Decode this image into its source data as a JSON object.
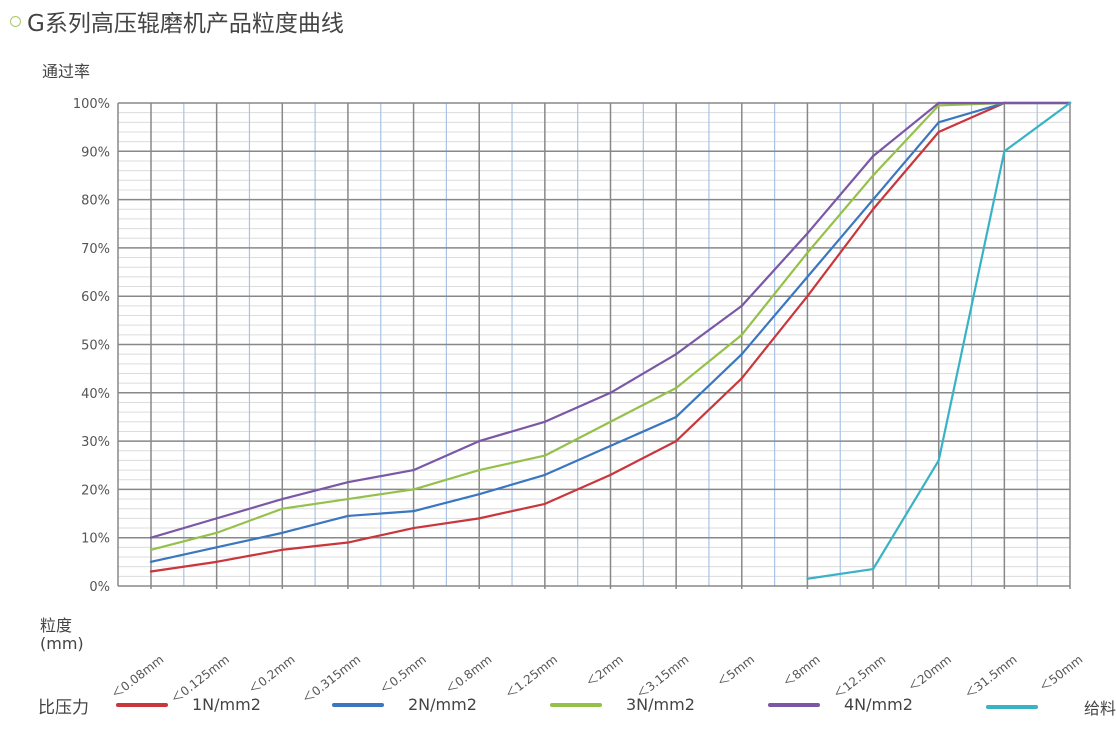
{
  "title": "G系列高压辊磨机产品粒度曲线",
  "chart_data": {
    "type": "line",
    "title": "G系列高压辊磨机产品粒度曲线",
    "ylabel": "通过率",
    "xlabel": [
      "粒度",
      "(mm)"
    ],
    "legend_title": "比压力",
    "legend_position": "bottom",
    "grid": true,
    "ylim": [
      0,
      100
    ],
    "yticks": [
      "0%",
      "10%",
      "20%",
      "30%",
      "40%",
      "50%",
      "60%",
      "70%",
      "80%",
      "90%",
      "100%"
    ],
    "categories": [
      "＜0.08mm",
      "＜0.125mm",
      "＜0.2mm",
      "＜0.315mm",
      "＜0.5mm",
      "＜0.8mm",
      "＜1.25mm",
      "＜2mm",
      "＜3.15mm",
      "＜5mm",
      "＜8mm",
      "＜12.5mm",
      "＜20mm",
      "＜31.5mm",
      "＜50mm"
    ],
    "series": [
      {
        "name": "1N/mm2",
        "color": "#c9373c",
        "values": [
          3,
          5,
          7.5,
          9,
          12,
          14,
          17,
          23,
          30,
          43,
          60,
          78,
          94,
          100,
          100
        ]
      },
      {
        "name": "2N/mm2",
        "color": "#3a77c0",
        "values": [
          5,
          8,
          11,
          14.5,
          15.5,
          19,
          23,
          29,
          35,
          48,
          64,
          80,
          96,
          100,
          100
        ]
      },
      {
        "name": "3N/mm2",
        "color": "#95c14b",
        "values": [
          7.5,
          11,
          16,
          18,
          20,
          24,
          27,
          34,
          41,
          52,
          69,
          85,
          99.5,
          100,
          100
        ]
      },
      {
        "name": "4N/mm2",
        "color": "#7b58a6",
        "values": [
          10,
          14,
          18,
          21.5,
          24,
          30,
          34,
          40,
          48,
          58,
          73,
          89,
          100,
          100,
          100
        ]
      },
      {
        "name": "给料",
        "color": "#38b3c6",
        "values": [
          null,
          null,
          null,
          null,
          null,
          null,
          null,
          null,
          null,
          null,
          1.5,
          3.5,
          26,
          90,
          100
        ]
      }
    ]
  }
}
